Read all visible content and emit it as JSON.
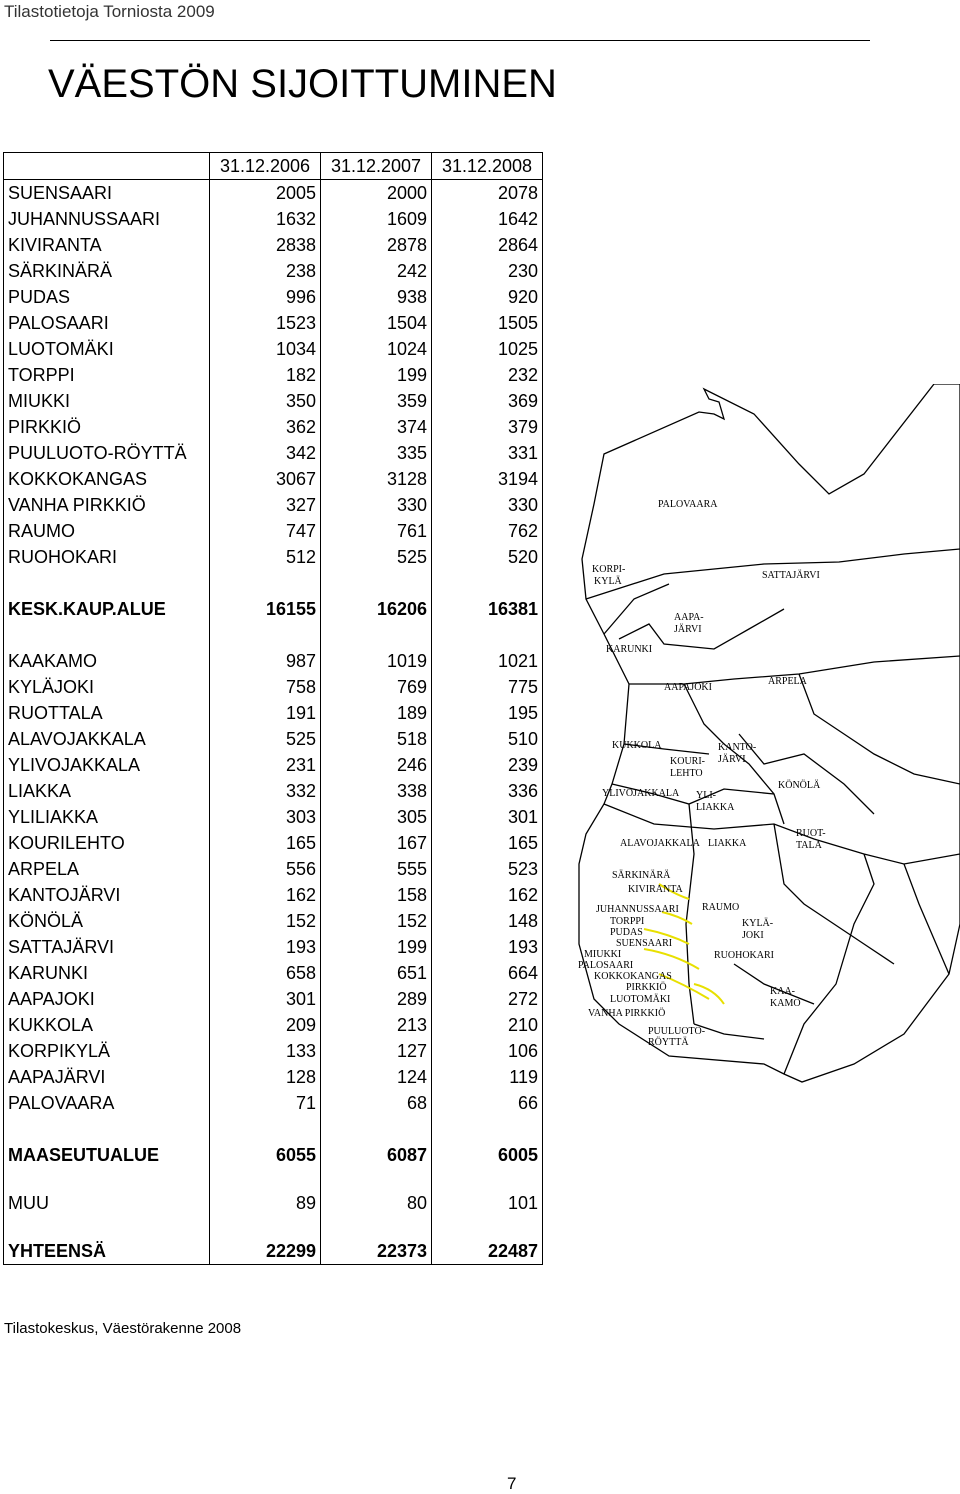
{
  "header": {
    "text": "Tilastotietoja Torniosta 2009"
  },
  "title": "VÄESTÖN SIJOITTUMINEN",
  "table": {
    "columns": [
      "31.12.2006",
      "31.12.2007",
      "31.12.2008"
    ],
    "city_rows": [
      {
        "name": "SUENSAARI",
        "values": [
          "2005",
          "2000",
          "2078"
        ]
      },
      {
        "name": "JUHANNUSSAARI",
        "values": [
          "1632",
          "1609",
          "1642"
        ]
      },
      {
        "name": "KIVIRANTA",
        "values": [
          "2838",
          "2878",
          "2864"
        ]
      },
      {
        "name": "SÄRKINÄRÄ",
        "values": [
          "238",
          "242",
          "230"
        ]
      },
      {
        "name": "PUDAS",
        "values": [
          "996",
          "938",
          "920"
        ]
      },
      {
        "name": "PALOSAARI",
        "values": [
          "1523",
          "1504",
          "1505"
        ]
      },
      {
        "name": "LUOTOMÄKI",
        "values": [
          "1034",
          "1024",
          "1025"
        ]
      },
      {
        "name": "TORPPI",
        "values": [
          "182",
          "199",
          "232"
        ]
      },
      {
        "name": "MIUKKI",
        "values": [
          "350",
          "359",
          "369"
        ]
      },
      {
        "name": "PIRKKIÖ",
        "values": [
          "362",
          "374",
          "379"
        ]
      },
      {
        "name": "PUULUOTO-RÖYTTÄ",
        "values": [
          "342",
          "335",
          "331"
        ]
      },
      {
        "name": "KOKKOKANGAS",
        "values": [
          "3067",
          "3128",
          "3194"
        ]
      },
      {
        "name": "VANHA PIRKKIÖ",
        "values": [
          "327",
          "330",
          "330"
        ]
      },
      {
        "name": "RAUMO",
        "values": [
          "747",
          "761",
          "762"
        ]
      },
      {
        "name": "RUOHOKARI",
        "values": [
          "512",
          "525",
          "520"
        ]
      }
    ],
    "city_total": {
      "name": "KESK.KAUP.ALUE",
      "values": [
        "16155",
        "16206",
        "16381"
      ]
    },
    "rural_rows": [
      {
        "name": "KAAKAMO",
        "values": [
          "987",
          "1019",
          "1021"
        ]
      },
      {
        "name": "KYLÄJOKI",
        "values": [
          "758",
          "769",
          "775"
        ]
      },
      {
        "name": "RUOTTALA",
        "values": [
          "191",
          "189",
          "195"
        ]
      },
      {
        "name": "ALAVOJAKKALA",
        "values": [
          "525",
          "518",
          "510"
        ]
      },
      {
        "name": "YLIVOJAKKALA",
        "values": [
          "231",
          "246",
          "239"
        ]
      },
      {
        "name": "LIAKKA",
        "values": [
          "332",
          "338",
          "336"
        ]
      },
      {
        "name": "YLILIAKKA",
        "values": [
          "303",
          "305",
          "301"
        ]
      },
      {
        "name": "KOURILEHTO",
        "values": [
          "165",
          "167",
          "165"
        ]
      },
      {
        "name": "ARPELA",
        "values": [
          "556",
          "555",
          "523"
        ]
      },
      {
        "name": "KANTOJÄRVI",
        "values": [
          "162",
          "158",
          "162"
        ]
      },
      {
        "name": "KÖNÖLÄ",
        "values": [
          "152",
          "152",
          "148"
        ]
      },
      {
        "name": "SATTAJÄRVI",
        "values": [
          "193",
          "199",
          "193"
        ]
      },
      {
        "name": "KARUNKI",
        "values": [
          "658",
          "651",
          "664"
        ]
      },
      {
        "name": "AAPAJOKI",
        "values": [
          "301",
          "289",
          "272"
        ]
      },
      {
        "name": "KUKKOLA",
        "values": [
          "209",
          "213",
          "210"
        ]
      },
      {
        "name": "KORPIKYLÄ",
        "values": [
          "133",
          "127",
          "106"
        ]
      },
      {
        "name": "AAPAJÄRVI",
        "values": [
          "128",
          "124",
          "119"
        ]
      },
      {
        "name": "PALOVAARA",
        "values": [
          "71",
          "68",
          "66"
        ]
      }
    ],
    "rural_total": {
      "name": "MAASEUTUALUE",
      "values": [
        "6055",
        "6087",
        "6005"
      ]
    },
    "other": {
      "name": "MUU",
      "values": [
        "89",
        "80",
        "101"
      ]
    },
    "grand_total": {
      "name": "YHTEENSÄ",
      "values": [
        "22299",
        "22373",
        "22487"
      ]
    }
  },
  "source": "Tilastokeskus, Väestörakenne 2008",
  "page_number": "7",
  "map": {
    "labels": {
      "palovaara": "PALOVAARA",
      "korpi1": "KORPI-",
      "korpi2": "KYLÄ",
      "sattajarvi": "SATTAJÄRVI",
      "aapa1": "AAPA-",
      "aapa2": "JÄRVI",
      "karunki": "KARUNKI",
      "aapajoki": "AAPAJOKI",
      "arpela": "ARPELA",
      "kukkola": "KUKKOLA",
      "kanto1": "KANTO-",
      "kanto2": "JÄRVI",
      "kouri1": "KOURI-",
      "kouri2": "LEHTO",
      "konola": "KÖNÖLÄ",
      "ylivojakkala": "YLIVOJAKKALA",
      "yli1": "YLI-",
      "yli2": "LIAKKA",
      "ruot1": "RUOT-",
      "ruot2": "TALA",
      "alavojakkala": "ALAVOJAKKALA",
      "liakka": "LIAKKA",
      "sarkinara": "SÄRKINÄRÄ",
      "kiviranta": "KIVIRANTA",
      "juhannussaari": "JUHANNUSSAARI",
      "raumo": "RAUMO",
      "torppi": "TORPPI",
      "pudas": "PUDAS",
      "kyla1": "KYLÄ-",
      "kyla2": "JOKI",
      "suensaari": "SUENSAARI",
      "miukki": "MIUKKI",
      "ruohokari": "RUOHOKARI",
      "palosaari": "PALOSAARI",
      "kokkokangas": "KOKKOKANGAS",
      "pirkkio": "PIRKKIÖ",
      "kaa1": "KAA-",
      "kaa2": "KAMO",
      "luotomaki": "LUOTOMÄKI",
      "vanhapirkkio": "VANHA PIRKKIÖ",
      "puu1": "PUULUOTO-",
      "puu2": "RÖYTTÄ"
    }
  }
}
